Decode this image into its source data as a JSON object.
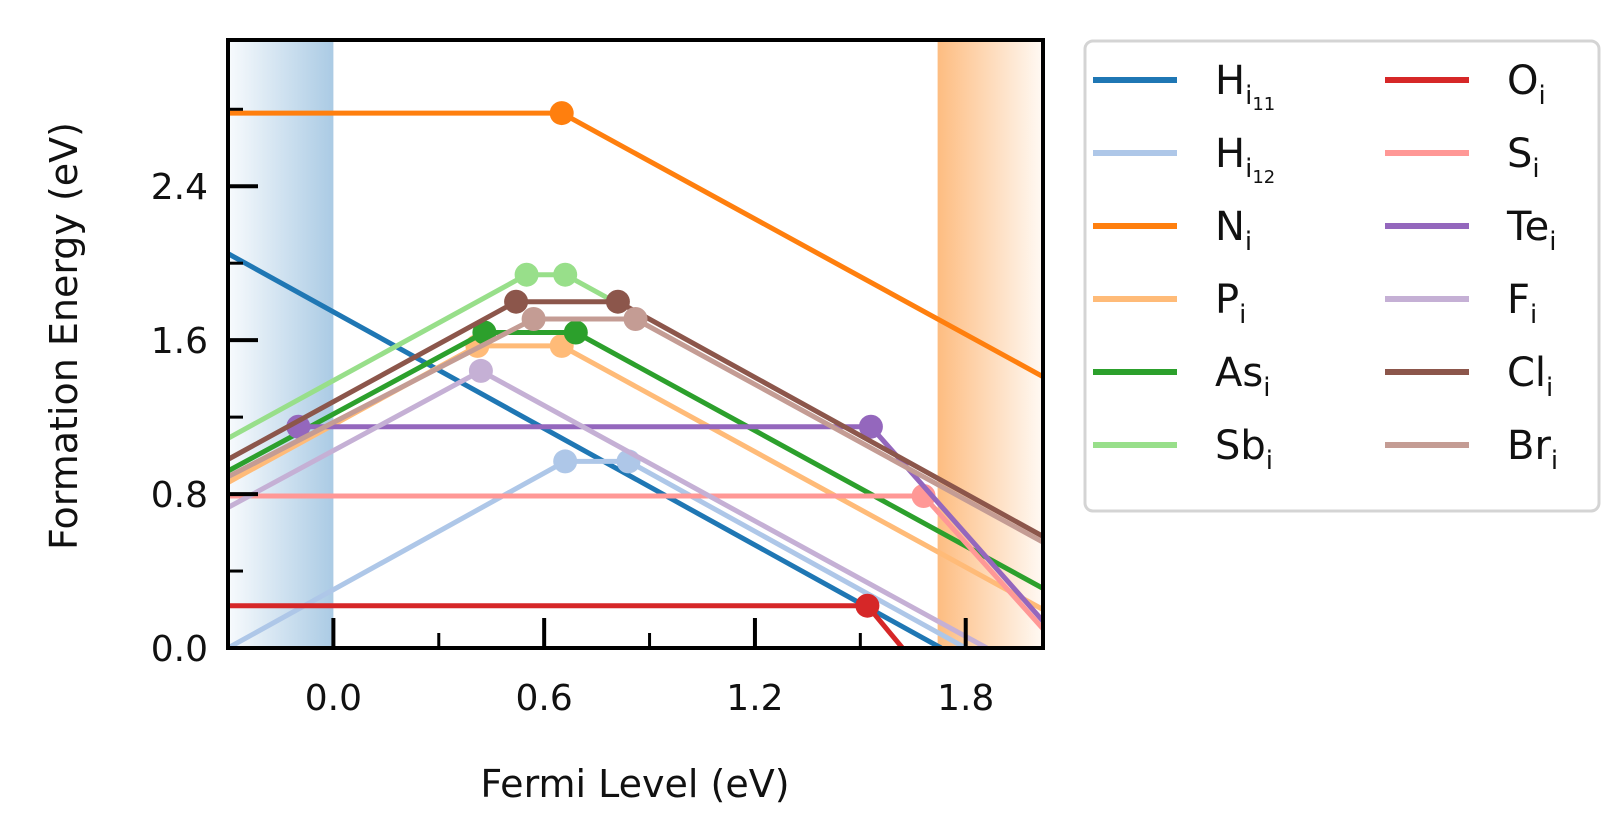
{
  "chart_data": {
    "type": "line",
    "xlabel": "Fermi Level (eV)",
    "ylabel": "Formation Energy (eV)",
    "xlim": [
      -0.3,
      2.02
    ],
    "ylim": [
      0.0,
      3.16
    ],
    "xticks": [
      {
        "value": 0.0,
        "label": "0.0"
      },
      {
        "value": 0.6,
        "label": "0.6"
      },
      {
        "value": 1.2,
        "label": "1.2"
      },
      {
        "value": 1.8,
        "label": "1.8"
      }
    ],
    "xminor": [
      0.3,
      0.9,
      1.5
    ],
    "yticks": [
      {
        "value": 0.0,
        "label": "0.0"
      },
      {
        "value": 0.8,
        "label": "0.8"
      },
      {
        "value": 1.6,
        "label": "1.6"
      },
      {
        "value": 2.4,
        "label": "2.4"
      }
    ],
    "yminor": [
      0.4,
      1.2,
      2.0,
      2.8
    ],
    "valence_band": {
      "range": [
        -0.3,
        0.0
      ],
      "color": "#a6c8e3"
    },
    "conduction_band": {
      "range": [
        1.72,
        2.02
      ],
      "color": "#fdb97a"
    },
    "legend": {
      "placement": "outside-right",
      "columns": 2
    },
    "series": [
      {
        "name": "H",
        "sub": "i",
        "subsub": "11",
        "color": "#1f77b4",
        "points": [
          [
            -0.3,
            2.05
          ],
          [
            1.73,
            0.0
          ]
        ],
        "markers": []
      },
      {
        "name": "H",
        "sub": "i",
        "subsub": "12",
        "color": "#aec7e8",
        "points": [
          [
            -0.3,
            0.0
          ],
          [
            0.66,
            0.97
          ],
          [
            0.84,
            0.97
          ],
          [
            1.8,
            0.0
          ]
        ],
        "markers": [
          [
            0.66,
            0.97
          ],
          [
            0.84,
            0.97
          ]
        ]
      },
      {
        "name": "N",
        "sub": "i",
        "color": "#ff7f0e",
        "points": [
          [
            -0.3,
            2.78
          ],
          [
            0.65,
            2.78
          ],
          [
            2.02,
            1.41
          ]
        ],
        "markers": [
          [
            0.65,
            2.78
          ]
        ]
      },
      {
        "name": "P",
        "sub": "i",
        "color": "#ffbb78",
        "points": [
          [
            -0.3,
            0.86
          ],
          [
            0.41,
            1.57
          ],
          [
            0.65,
            1.57
          ],
          [
            2.02,
            0.2
          ]
        ],
        "markers": [
          [
            0.41,
            1.57
          ],
          [
            0.65,
            1.57
          ]
        ]
      },
      {
        "name": "As",
        "sub": "i",
        "color": "#2ca02c",
        "points": [
          [
            -0.3,
            0.92
          ],
          [
            0.43,
            1.64
          ],
          [
            0.69,
            1.64
          ],
          [
            2.02,
            0.31
          ]
        ],
        "markers": [
          [
            0.43,
            1.64
          ],
          [
            0.69,
            1.64
          ]
        ]
      },
      {
        "name": "Sb",
        "sub": "i",
        "color": "#98df8a",
        "points": [
          [
            -0.3,
            1.09
          ],
          [
            0.55,
            1.94
          ],
          [
            0.66,
            1.94
          ],
          [
            0.8,
            1.8
          ]
        ],
        "markers": [
          [
            0.55,
            1.94
          ],
          [
            0.66,
            1.94
          ]
        ]
      },
      {
        "name": "O",
        "sub": "i",
        "color": "#d62728",
        "points": [
          [
            -0.3,
            0.22
          ],
          [
            1.52,
            0.22
          ],
          [
            1.62,
            0.0
          ]
        ],
        "markers": [
          [
            1.52,
            0.22
          ]
        ]
      },
      {
        "name": "S",
        "sub": "i",
        "color": "#ff9896",
        "points": [
          [
            -0.3,
            0.79
          ],
          [
            1.68,
            0.79
          ],
          [
            2.02,
            0.1
          ]
        ],
        "markers": [
          [
            1.68,
            0.79
          ]
        ]
      },
      {
        "name": "Te",
        "sub": "i",
        "color": "#9467bd",
        "points": [
          [
            -0.1,
            1.15
          ],
          [
            1.53,
            1.15
          ],
          [
            2.02,
            0.14
          ]
        ],
        "markers": [
          [
            -0.1,
            1.15
          ],
          [
            1.53,
            1.15
          ]
        ]
      },
      {
        "name": "F",
        "sub": "i",
        "color": "#c5b0d5",
        "points": [
          [
            -0.3,
            0.73
          ],
          [
            0.42,
            1.44
          ],
          [
            1.86,
            0.0
          ]
        ],
        "markers": [
          [
            0.42,
            1.44
          ]
        ]
      },
      {
        "name": "Cl",
        "sub": "i",
        "color": "#8c564b",
        "points": [
          [
            -0.3,
            0.98
          ],
          [
            0.52,
            1.8
          ],
          [
            0.81,
            1.8
          ],
          [
            2.02,
            0.58
          ]
        ],
        "markers": [
          [
            0.52,
            1.8
          ],
          [
            0.81,
            1.8
          ]
        ]
      },
      {
        "name": "Br",
        "sub": "i",
        "color": "#c49c94",
        "points": [
          [
            -0.3,
            0.89
          ],
          [
            0.57,
            1.71
          ],
          [
            0.86,
            1.71
          ],
          [
            2.02,
            0.55
          ]
        ],
        "markers": [
          [
            0.57,
            1.71
          ],
          [
            0.86,
            1.71
          ]
        ]
      }
    ]
  }
}
